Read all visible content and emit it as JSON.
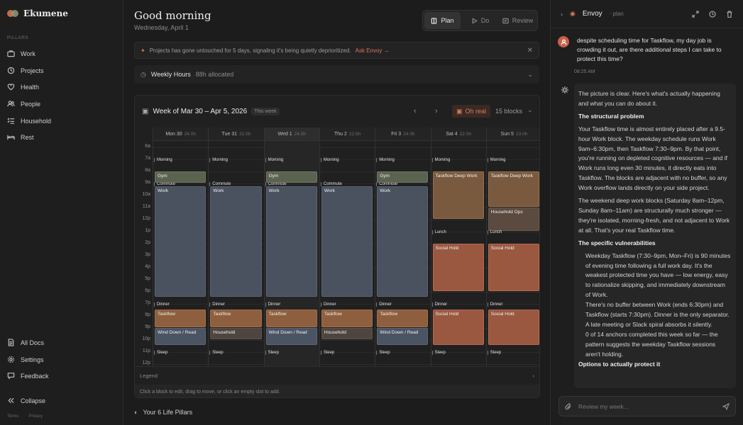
{
  "app": {
    "name": "Ekumene"
  },
  "sidebar": {
    "section_label": "PILLARS",
    "items": [
      {
        "label": "Work",
        "icon": "briefcase-icon"
      },
      {
        "label": "Projects",
        "icon": "projects-icon"
      },
      {
        "label": "Health",
        "icon": "heart-icon"
      },
      {
        "label": "People",
        "icon": "people-icon"
      },
      {
        "label": "Household",
        "icon": "checklist-icon"
      },
      {
        "label": "Rest",
        "icon": "bed-icon"
      }
    ],
    "bottom": [
      {
        "label": "All Docs",
        "icon": "document-icon"
      },
      {
        "label": "Settings",
        "icon": "gear-icon"
      },
      {
        "label": "Feedback",
        "icon": "chat-icon"
      },
      {
        "label": "Collapse",
        "icon": "collapse-icon"
      }
    ],
    "footer": {
      "terms": "Terms",
      "privacy": "Privacy"
    }
  },
  "header": {
    "greeting": "Good morning",
    "date": "Wednesday, April 1",
    "tabs": [
      {
        "label": "Plan",
        "icon": "book-icon"
      },
      {
        "label": "Do",
        "icon": "play-icon"
      },
      {
        "label": "Review",
        "icon": "review-icon"
      }
    ]
  },
  "alert": {
    "text": "Projects has gone untouched for 5 days, signaling it's being quietly deprioritized.",
    "link": "Ask Envoy →"
  },
  "hours": {
    "title": "Weekly Hours",
    "allocated": "88h allocated"
  },
  "calendar": {
    "title": "Week of Mar 30 – Apr 5, 2026",
    "badge": "This week",
    "ohreal": "Oh real",
    "blocks": "15 blocks",
    "days": [
      {
        "name": "Mon 30",
        "hours": "24.0h"
      },
      {
        "name": "Tue 31",
        "hours": "22.5h"
      },
      {
        "name": "Wed 1",
        "hours": "24.0h"
      },
      {
        "name": "Thu 2",
        "hours": "22.5h"
      },
      {
        "name": "Fri 3",
        "hours": "24.0h"
      },
      {
        "name": "Sat 4",
        "hours": "22.0h"
      },
      {
        "name": "Sun 5",
        "hours": "23.0h"
      }
    ],
    "hours_labels": [
      "6a",
      "7a",
      "8a",
      "9a",
      "10a",
      "11a",
      "12p",
      "1p",
      "2p",
      "3p",
      "4p",
      "5p",
      "6p",
      "7p",
      "8p",
      "9p",
      "10p",
      "11p",
      "12p"
    ],
    "legend": "Legend",
    "hint": "Click a block to edit, drag to move, or click an empty slot to add."
  },
  "pillars_footer": "Your 6 Life Pillars",
  "panel": {
    "title": "Envoy",
    "mode": "· plan",
    "user_message": "despite scheduling time for Taskflow, my day job is crowding it out, are there additional steps I can take to protect this time?",
    "time": "08:25 AM",
    "ai": {
      "intro": "The picture is clear. Here's what's actually happening and what you can do about it.",
      "h1": "The structural problem",
      "p1": "Your Taskflow time is almost entirely placed after a 9.5-hour Work block. The weekday schedule runs Work 9am–6:30pm, then Taskflow 7:30–9pm. By that point, you're running on depleted cognitive resources — and if Work runs long even 30 minutes, it directly eats into Taskflow. The blocks are adjacent with no buffer, so any Work overflow lands directly on your side project.",
      "p2": "The weekend deep work blocks (Saturday 8am–12pm, Sunday 8am–11am) are structurally much stronger — they're isolated, morning-fresh, and not adjacent to Work at all. That's your real Taskflow time.",
      "h2": "The specific vulnerabilities",
      "li1": "Weekday Taskflow (7:30–9pm, Mon–Fri) is 90 minutes of evening time following a full work day. It's the weakest protected time you have — low energy, easy to rationalize skipping, and immediately downstream of Work.",
      "li2": "There's no buffer between Work (ends 6:30pm) and Taskflow (starts 7:30pm). Dinner is the only separator. A late meeting or Slack spiral absorbs it silently.",
      "li3": "0 of 14 anchors completed this week so far — the pattern suggests the weekday Taskflow sessions aren't holding.",
      "h3": "Options to actually protect it"
    },
    "composer_placeholder": "Review my week..."
  },
  "colors": {
    "work": "#4a5260",
    "gym": "#5a6350",
    "taskflow": "#8e5f3e",
    "social": "#9a5840",
    "accent": "#d6795a"
  }
}
